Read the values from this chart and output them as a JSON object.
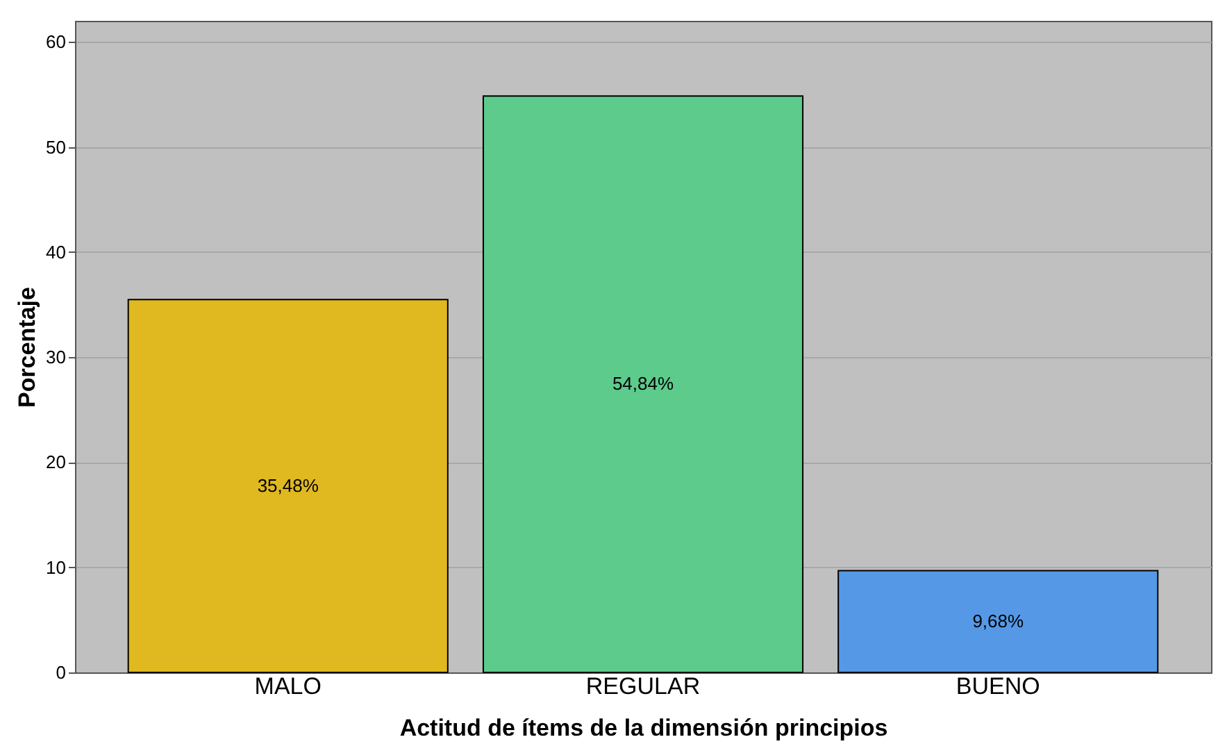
{
  "chart_data": {
    "type": "bar",
    "xlabel": "Actitud de ítems de la dimensión principios",
    "ylabel": "Porcentaje",
    "categories": [
      "MALO",
      "REGULAR",
      "BUENO"
    ],
    "values": [
      35.48,
      54.84,
      9.68
    ],
    "colors": [
      "#e0b820",
      "#5ccb8c",
      "#5599e6"
    ],
    "value_labels": [
      "35,48%",
      "54,84%",
      "9,68%"
    ],
    "ylim": [
      0,
      62
    ],
    "yticks": [
      0,
      10,
      20,
      30,
      40,
      50,
      60
    ],
    "grid": "y"
  }
}
